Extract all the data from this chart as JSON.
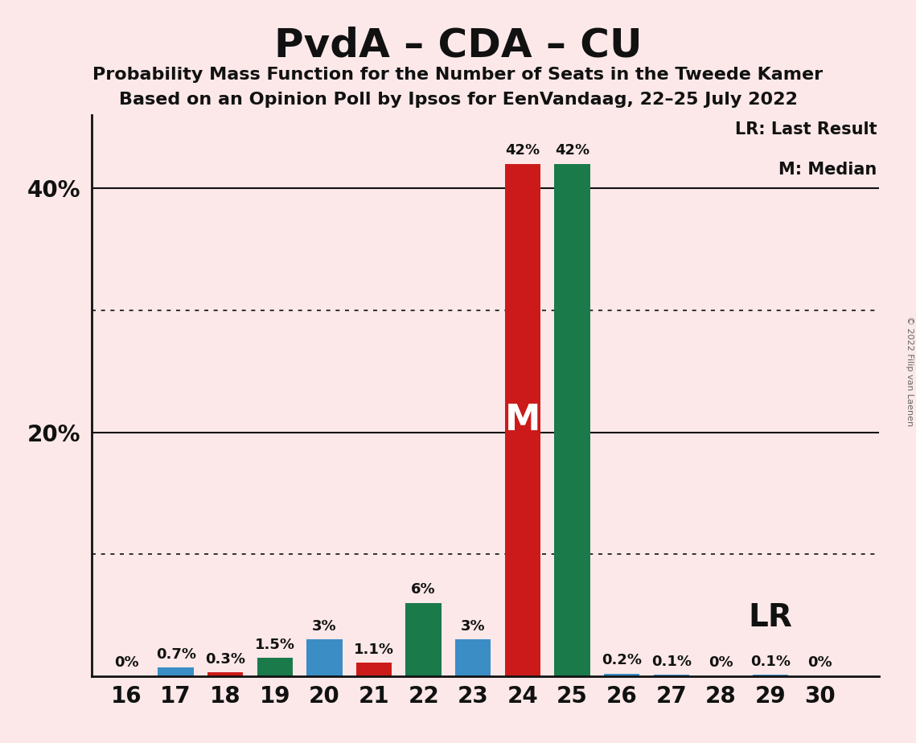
{
  "title": "PvdA – CDA – CU",
  "subtitle1": "Probability Mass Function for the Number of Seats in the Tweede Kamer",
  "subtitle2": "Based on an Opinion Poll by Ipsos for EenVandaag, 22–25 July 2022",
  "background_color": "#fce8e8",
  "seats": [
    16,
    17,
    18,
    19,
    20,
    21,
    22,
    23,
    24,
    25,
    26,
    27,
    28,
    29,
    30
  ],
  "values": [
    0.0,
    0.7,
    0.3,
    1.5,
    3.0,
    1.1,
    6.0,
    3.0,
    42.0,
    42.0,
    0.2,
    0.1,
    0.0,
    0.1,
    0.0
  ],
  "bar_colors": [
    "#3a8dc5",
    "#3a8dc5",
    "#cc1a1a",
    "#1a7a4a",
    "#3a8dc5",
    "#cc1a1a",
    "#1a7a4a",
    "#3a8dc5",
    "#cc1a1a",
    "#1a7a4a",
    "#3a8dc5",
    "#3a8dc5",
    "#3a8dc5",
    "#3a8dc5",
    "#3a8dc5"
  ],
  "labels": [
    "0%",
    "0.7%",
    "0.3%",
    "1.5%",
    "3%",
    "1.1%",
    "6%",
    "3%",
    "42%",
    "42%",
    "0.2%",
    "0.1%",
    "0%",
    "0.1%",
    "0%"
  ],
  "median_seat": 24,
  "lr_seat": 25,
  "ylim": [
    0,
    46
  ],
  "solid_lines": [
    20,
    40
  ],
  "dotted_lines": [
    10,
    30
  ],
  "ytick_positions": [
    20,
    40
  ],
  "ytick_labels": [
    "20%",
    "40%"
  ],
  "legend_text1": "LR: Last Result",
  "legend_text2": "M: Median",
  "lr_label": "LR",
  "copyright": "© 2022 Filip van Laenen",
  "label_fontsize": 13,
  "tick_fontsize": 20,
  "title_fontsize": 36,
  "subtitle_fontsize": 16
}
